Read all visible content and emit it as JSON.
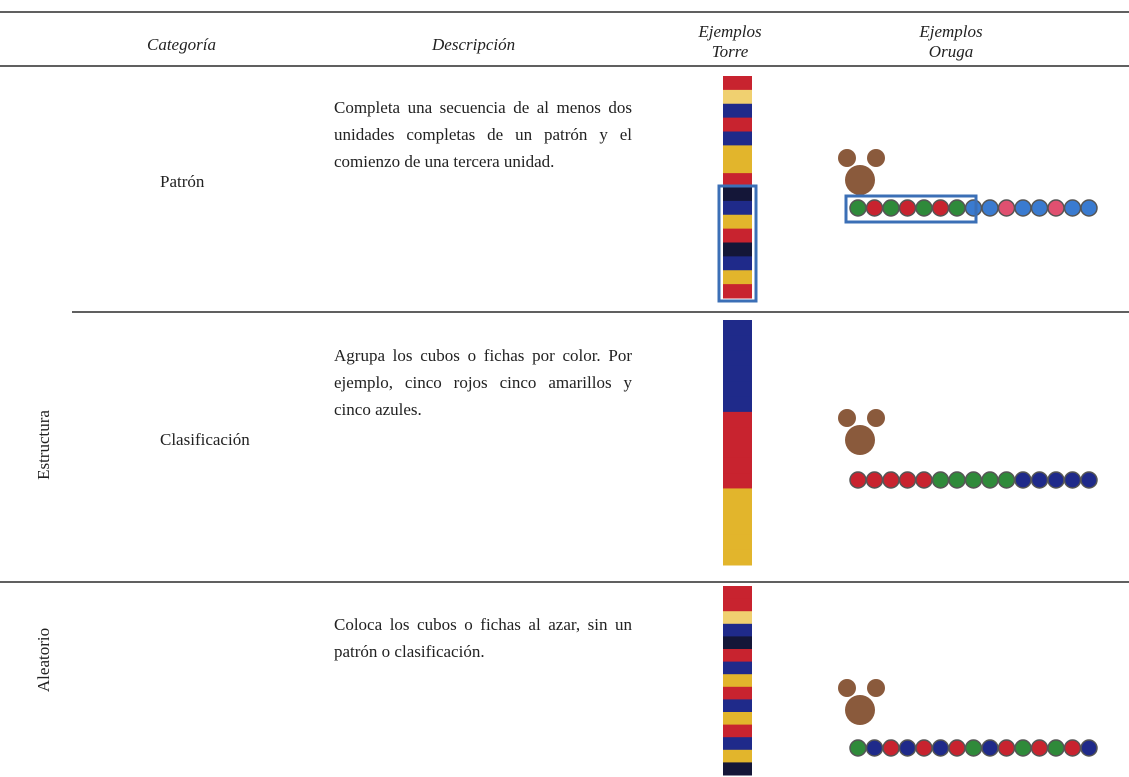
{
  "table": {
    "headers": [
      "Categoría",
      "Descripción",
      "Ejemplos\nTorre",
      "Ejemplos\nOruga"
    ],
    "groups": [
      {
        "label": "Estructura"
      },
      {
        "label": "Aleatorio"
      }
    ],
    "rows": [
      {
        "category": "Patrón",
        "description": "Completa una secuencia de al menos dos unidades completas de un patrón y el comienzo de una tercera unidad."
      },
      {
        "category": "Clasificación",
        "description": "Agrupa los cubos o fichas por color. Por ejemplo, cinco rojos cinco amarillos y cinco azules."
      },
      {
        "description": "Coloca los cubos o fichas al azar, sin un patrón o clasificación."
      }
    ]
  }
}
